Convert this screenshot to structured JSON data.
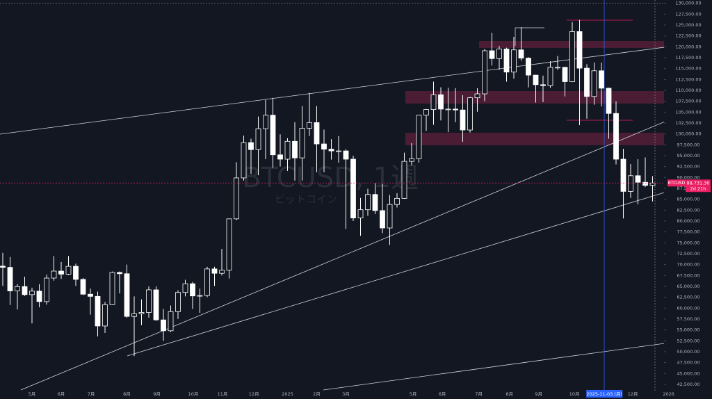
{
  "chart_data": {
    "type": "candlestick",
    "symbol": "BTCUSD",
    "watermark": "BTCUSD, 1週",
    "watermark_sub": "ビットコイン",
    "last_price": {
      "value": 88731.3,
      "label": "88,731.30"
    },
    "countdown": "2d 21h",
    "up_color": "#131722",
    "down_color": "#ffffff",
    "wick_color": "#ffffff",
    "open": [
      69650,
      69360,
      63950,
      64950,
      63100,
      63900,
      61500,
      66900,
      68500,
      67800,
      69600,
      66600,
      63200,
      62700,
      55900,
      60800,
      68200,
      67900,
      58100,
      58700,
      59000,
      64200,
      57300,
      54800,
      59200,
      63600,
      65600,
      62800,
      62900,
      69000,
      68000,
      68700,
      80500,
      89900,
      98000,
      96400,
      101200,
      104300,
      95200,
      94200,
      98300,
      94500,
      101300,
      102600,
      97700,
      96500,
      96100,
      96100,
      94200,
      80700,
      82600,
      86100,
      82400,
      78400,
      83800,
      85200,
      93700,
      94300,
      104300,
      105600,
      109000,
      105700,
      105700,
      105500,
      100900,
      108300,
      109200,
      119100,
      117300,
      119500,
      114200,
      119300,
      117400,
      113500,
      111300,
      111100,
      115300,
      115300,
      112000,
      123500,
      115100,
      108600,
      114500,
      110500,
      104700,
      94200,
      86800,
      90400,
      88900,
      88200
    ],
    "high": [
      72700,
      71750,
      65500,
      67200,
      64700,
      65500,
      67700,
      71950,
      70600,
      71950,
      70200,
      66900,
      64500,
      63800,
      61400,
      68400,
      68400,
      70000,
      62700,
      62000,
      65000,
      65000,
      59800,
      60600,
      64100,
      66500,
      66000,
      64500,
      69500,
      69500,
      73600,
      80500,
      93500,
      99600,
      98900,
      104000,
      107800,
      108300,
      99900,
      99000,
      102700,
      106400,
      109400,
      106400,
      101000,
      98800,
      99500,
      96500,
      95000,
      85300,
      87400,
      88700,
      88500,
      86000,
      86400,
      95700,
      97900,
      104300,
      105700,
      112000,
      110700,
      110600,
      110500,
      108900,
      108500,
      110500,
      119500,
      123200,
      120200,
      119800,
      122300,
      124500,
      117600,
      113600,
      113400,
      116700,
      117900,
      115400,
      125700,
      126200,
      116000,
      116400,
      116400,
      110600,
      107500,
      96600,
      93100,
      94200,
      94600,
      90300
    ],
    "low": [
      65100,
      60700,
      59700,
      62800,
      56500,
      60200,
      60800,
      66300,
      66700,
      67600,
      65100,
      63000,
      58500,
      53500,
      54300,
      60700,
      63400,
      57800,
      49000,
      56100,
      57800,
      57100,
      52500,
      54500,
      57500,
      62700,
      59800,
      58900,
      62500,
      65100,
      67500,
      66800,
      80200,
      89300,
      90800,
      90500,
      94200,
      92200,
      92500,
      91500,
      89300,
      89300,
      99500,
      91200,
      91200,
      94100,
      93400,
      78200,
      80000,
      76600,
      81200,
      81600,
      77200,
      74500,
      83100,
      85100,
      92800,
      93400,
      100700,
      102100,
      103100,
      100400,
      102700,
      98200,
      100300,
      105100,
      107500,
      115700,
      114700,
      112000,
      112700,
      116800,
      110700,
      107200,
      107300,
      110600,
      114700,
      108600,
      111900,
      102000,
      103500,
      106700,
      106300,
      98900,
      93000,
      80600,
      85300,
      83800,
      87800,
      84500
    ],
    "close": [
      69360,
      63950,
      64950,
      63100,
      63900,
      61500,
      66900,
      68500,
      67800,
      69600,
      66600,
      63200,
      62700,
      55900,
      60800,
      68200,
      67900,
      58100,
      58700,
      59000,
      64200,
      57300,
      54800,
      59200,
      63600,
      65600,
      62800,
      62900,
      69000,
      68000,
      68700,
      80500,
      89900,
      98000,
      96400,
      101200,
      104300,
      95200,
      94200,
      98300,
      94500,
      101300,
      102600,
      97700,
      96500,
      96100,
      96100,
      94200,
      80700,
      82600,
      86100,
      82400,
      78400,
      83800,
      85200,
      93700,
      94300,
      104300,
      105600,
      109000,
      105700,
      105700,
      105500,
      100900,
      108300,
      109200,
      119100,
      117300,
      119500,
      114200,
      119300,
      117400,
      113500,
      111300,
      111100,
      115300,
      115300,
      112000,
      123500,
      115100,
      108600,
      114500,
      110500,
      104700,
      94200,
      86800,
      90400,
      88900,
      88200,
      88731.3
    ],
    "ylim": [
      41050,
      130750
    ],
    "yticks": [
      {
        "value": 130000,
        "label": "130,000.00"
      },
      {
        "value": 127500,
        "label": "127,500.00"
      },
      {
        "value": 125000,
        "label": "125,000.00"
      },
      {
        "value": 122500,
        "label": "122,500.00"
      },
      {
        "value": 120000,
        "label": "120,000.00"
      },
      {
        "value": 117500,
        "label": "117,500.00"
      },
      {
        "value": 115000,
        "label": "115,000.00"
      },
      {
        "value": 112500,
        "label": "112,500.00"
      },
      {
        "value": 110000,
        "label": "110,000.00"
      },
      {
        "value": 107500,
        "label": "107,500.00"
      },
      {
        "value": 105000,
        "label": "105,000.00"
      },
      {
        "value": 102500,
        "label": "102,500.00"
      },
      {
        "value": 100000,
        "label": "100,000.00"
      },
      {
        "value": 97500,
        "label": "97,500.00"
      },
      {
        "value": 95000,
        "label": "95,000.00"
      },
      {
        "value": 92500,
        "label": "92,500.00"
      },
      {
        "value": 90000,
        "label": "90,000.00"
      },
      {
        "value": 87500,
        "label": "87,500.00"
      },
      {
        "value": 85000,
        "label": "85,000.00"
      },
      {
        "value": 82500,
        "label": "82,500.00"
      },
      {
        "value": 80000,
        "label": "80,000.00"
      },
      {
        "value": 77500,
        "label": "77,500.00"
      },
      {
        "value": 75000,
        "label": "75,000.00"
      },
      {
        "value": 72500,
        "label": "72,500.00"
      },
      {
        "value": 70000,
        "label": "70,000.00"
      },
      {
        "value": 67500,
        "label": "67,500.00"
      },
      {
        "value": 65000,
        "label": "65,000.00"
      },
      {
        "value": 62500,
        "label": "62,500.00"
      },
      {
        "value": 60000,
        "label": "60,000.00"
      },
      {
        "value": 57500,
        "label": "57,500.00"
      },
      {
        "value": 55000,
        "label": "55,000.00"
      },
      {
        "value": 52500,
        "label": "52,500.00"
      },
      {
        "value": 50000,
        "label": "50,000.00"
      },
      {
        "value": 47500,
        "label": "47,500.00"
      },
      {
        "value": 45000,
        "label": "45,000.00"
      },
      {
        "value": 42500,
        "label": "42,500.00"
      }
    ],
    "xticks": [
      {
        "value": 4.0,
        "label": "5月"
      },
      {
        "value": 8.0,
        "label": "6月"
      },
      {
        "value": 12.1,
        "label": "7月"
      },
      {
        "value": 17.0,
        "label": "8月"
      },
      {
        "value": 21.1,
        "label": "9月"
      },
      {
        "value": 26.1,
        "label": "10月"
      },
      {
        "value": 30.1,
        "label": "11月"
      },
      {
        "value": 34.4,
        "label": "12月"
      },
      {
        "value": 39.0,
        "label": "2025"
      },
      {
        "value": 43.0,
        "label": "2月"
      },
      {
        "value": 47.0,
        "label": "3月"
      },
      {
        "value": 56.2,
        "label": "5月"
      },
      {
        "value": 60.2,
        "label": "6月"
      },
      {
        "value": 65.2,
        "label": "7月"
      },
      {
        "value": 69.4,
        "label": "8月"
      },
      {
        "value": 73.4,
        "label": "9月"
      },
      {
        "value": 78.3,
        "label": "10月"
      },
      {
        "value": 86.3,
        "label": "12月"
      },
      {
        "value": 91.2,
        "label": "2026"
      }
    ],
    "crosshair": {
      "value": 82.4,
      "label": "2025-11-03 (月)"
    }
  }
}
